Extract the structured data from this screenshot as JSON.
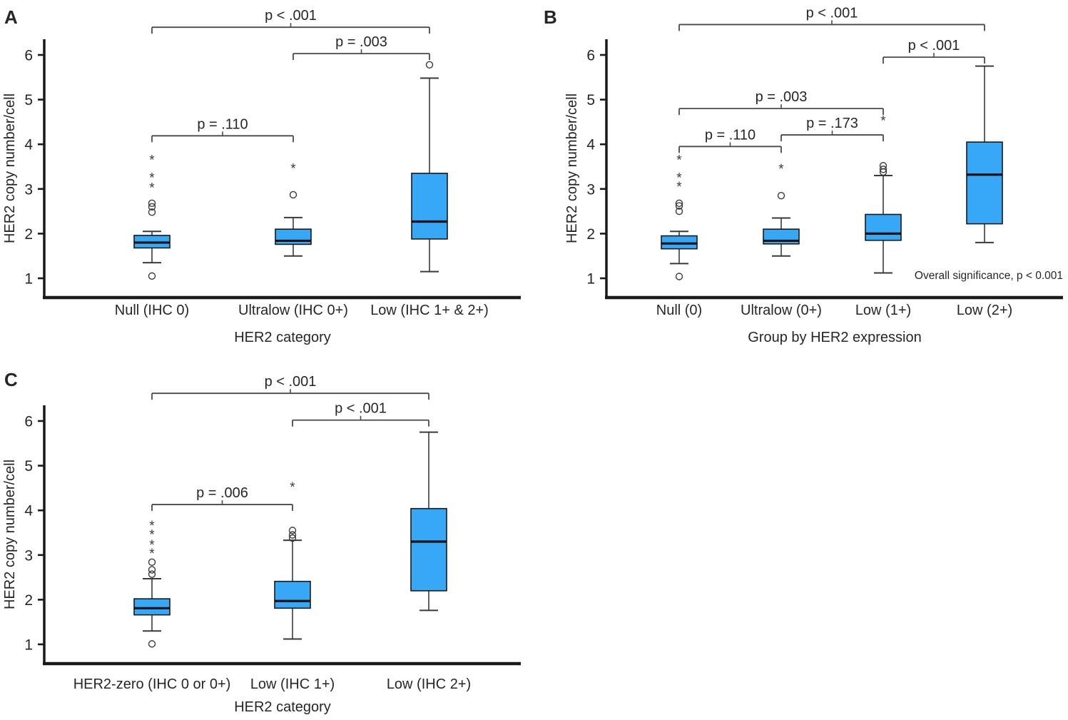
{
  "colors": {
    "box_fill": "#36A8F5",
    "box_stroke": "#1A1A1A",
    "median": "#111111",
    "axis": "#1A1A1A",
    "whisker": "#3A3A3A",
    "bracket": "#4A4A4A",
    "text": "#262626",
    "outlier": "#3A3A3A"
  },
  "chart_data": [
    {
      "type": "boxplot",
      "panel_label": "A",
      "title": "",
      "ylabel": "HER2 copy number/cell",
      "xlabel": "HER2 category",
      "ylim": [
        0.55,
        6.35
      ],
      "yticks": [
        1,
        2,
        3,
        4,
        5,
        6
      ],
      "grid": false,
      "legend": "none",
      "categories": [
        "Null (IHC 0)",
        "Ultralow (IHC 0+)",
        "Low (IHC 1+ & 2+)"
      ],
      "boxes": [
        {
          "category": "Null (IHC 0)",
          "whisker_low": 1.35,
          "q1": 1.68,
          "median": 1.8,
          "q3": 1.96,
          "whisker_high": 2.05,
          "outliers_circle": [
            1.05,
            2.48,
            2.6,
            2.68
          ],
          "outliers_star": [
            3.03,
            3.25,
            3.65
          ]
        },
        {
          "category": "Ultralow (IHC 0+)",
          "whisker_low": 1.5,
          "q1": 1.76,
          "median": 1.84,
          "q3": 2.1,
          "whisker_high": 2.36,
          "outliers_circle": [
            2.87
          ],
          "outliers_star": [
            3.46
          ]
        },
        {
          "category": "Low (IHC 1+ & 2+)",
          "whisker_low": 1.15,
          "q1": 1.88,
          "median": 2.27,
          "q3": 3.35,
          "whisker_high": 5.48,
          "outliers_circle": [
            5.78
          ],
          "outliers_star": []
        }
      ],
      "comparisons": [
        {
          "group1": "Null (IHC 0)",
          "group2": "Low (IHC 1+ & 2+)",
          "label": "p < .001",
          "line_y": 6.62
        },
        {
          "group1": "Ultralow (IHC 0+)",
          "group2": "Low (IHC 1+ & 2+)",
          "label": "p = .003",
          "line_y": 6.03
        },
        {
          "group1": "Null (IHC 0)",
          "group2": "Ultralow (IHC 0+)",
          "label": "p = .110",
          "line_y": 4.19
        }
      ],
      "annotation": ""
    },
    {
      "type": "boxplot",
      "panel_label": "B",
      "title": "",
      "ylabel": "HER2 copy number/cell",
      "xlabel": "Group by HER2 expression",
      "ylim": [
        0.55,
        6.35
      ],
      "yticks": [
        1,
        2,
        3,
        4,
        5,
        6
      ],
      "grid": false,
      "legend": "none",
      "categories": [
        "Null (0)",
        "Ultralow (0+)",
        "Low (1+)",
        "Low (2+)"
      ],
      "boxes": [
        {
          "category": "Null (0)",
          "whisker_low": 1.33,
          "q1": 1.66,
          "median": 1.78,
          "q3": 1.95,
          "whisker_high": 2.05,
          "outliers_circle": [
            1.04,
            2.5,
            2.62,
            2.68
          ],
          "outliers_star": [
            3.05,
            3.25,
            3.65
          ]
        },
        {
          "category": "Ultralow (0+)",
          "whisker_low": 1.5,
          "q1": 1.77,
          "median": 1.84,
          "q3": 2.1,
          "whisker_high": 2.35,
          "outliers_circle": [
            2.85
          ],
          "outliers_star": [
            3.45
          ]
        },
        {
          "category": "Low (1+)",
          "whisker_low": 1.12,
          "q1": 1.85,
          "median": 2.0,
          "q3": 2.43,
          "whisker_high": 3.3,
          "outliers_circle": [
            3.38,
            3.44,
            3.52
          ],
          "outliers_star": [
            4.53
          ]
        },
        {
          "category": "Low (2+)",
          "whisker_low": 1.8,
          "q1": 2.22,
          "median": 3.32,
          "q3": 4.05,
          "whisker_high": 5.75,
          "outliers_circle": [],
          "outliers_star": []
        }
      ],
      "comparisons": [
        {
          "group1": "Null (0)",
          "group2": "Low (2+)",
          "label": "p < .001",
          "line_y": 6.68
        },
        {
          "group1": "Low (1+)",
          "group2": "Low (2+)",
          "label": "p < .001",
          "line_y": 5.95
        },
        {
          "group1": "Null (0)",
          "group2": "Low (1+)",
          "label": "p = .003",
          "line_y": 4.8
        },
        {
          "group1": "Ultralow (0+)",
          "group2": "Low (1+)",
          "label": "p = .173",
          "line_y": 4.21
        },
        {
          "group1": "Null (0)",
          "group2": "Ultralow (0+)",
          "label": "p = .110",
          "line_y": 3.95
        }
      ],
      "annotation": "Overall significance, p < 0.001"
    },
    {
      "type": "boxplot",
      "panel_label": "C",
      "title": "",
      "ylabel": "HER2 copy number/cell",
      "xlabel": "HER2 category",
      "ylim": [
        0.55,
        6.35
      ],
      "yticks": [
        1,
        2,
        3,
        4,
        5,
        6
      ],
      "grid": false,
      "legend": "none",
      "categories": [
        "HER2-zero (IHC 0 or 0+)",
        "Low (IHC 1+)",
        "Low (IHC 2+)"
      ],
      "boxes": [
        {
          "category": "HER2-zero (IHC 0 or 0+)",
          "whisker_low": 1.3,
          "q1": 1.66,
          "median": 1.81,
          "q3": 2.02,
          "whisker_high": 2.47,
          "outliers_circle": [
            1.01,
            2.57,
            2.67,
            2.84
          ],
          "outliers_star": [
            3.04,
            3.23,
            3.46,
            3.66
          ]
        },
        {
          "category": "Low (IHC 1+)",
          "whisker_low": 1.12,
          "q1": 1.81,
          "median": 1.97,
          "q3": 2.41,
          "whisker_high": 3.33,
          "outliers_circle": [
            3.38,
            3.45,
            3.55
          ],
          "outliers_star": [
            4.52
          ]
        },
        {
          "category": "Low (IHC 2+)",
          "whisker_low": 1.76,
          "q1": 2.2,
          "median": 3.3,
          "q3": 4.04,
          "whisker_high": 5.75,
          "outliers_circle": [],
          "outliers_star": []
        }
      ],
      "comparisons": [
        {
          "group1": "HER2-zero (IHC 0 or 0+)",
          "group2": "Low (IHC 2+)",
          "label": "p < .001",
          "line_y": 6.62
        },
        {
          "group1": "Low (IHC 1+)",
          "group2": "Low (IHC 2+)",
          "label": "p < .001",
          "line_y": 6.02
        },
        {
          "group1": "HER2-zero (IHC 0 or 0+)",
          "group2": "Low (IHC 1+)",
          "label": "p = .006",
          "line_y": 4.13
        }
      ],
      "annotation": ""
    }
  ]
}
